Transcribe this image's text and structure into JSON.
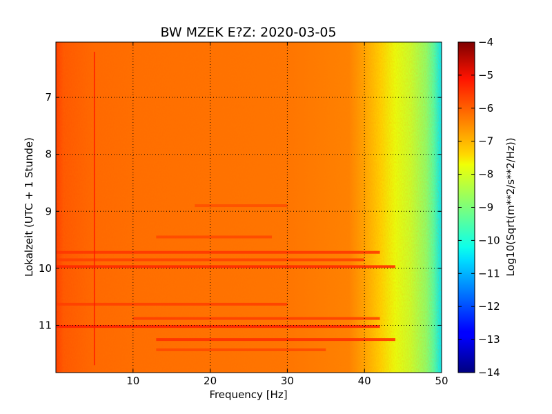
{
  "chart_data": {
    "type": "heatmap",
    "title": "BW MZEK E?Z: 2020-03-05",
    "xlabel": "Frequency [Hz]",
    "ylabel": "Lokalzeit (UTC + 1 Stunde)",
    "colorbar_label": "Log10(Sqrt(m**2/s**2/Hz))",
    "colormap": "jet",
    "xlim": [
      0,
      50
    ],
    "ylim": [
      6.03,
      11.83
    ],
    "y_inverted": true,
    "x_ticks": [
      10,
      20,
      30,
      40,
      50
    ],
    "x_tick_labels": [
      "10",
      "20",
      "30",
      "40",
      "50"
    ],
    "y_ticks": [
      7,
      8,
      9,
      10,
      11
    ],
    "y_tick_labels": [
      "7",
      "8",
      "9",
      "10",
      "11"
    ],
    "clim": [
      -14,
      -4
    ],
    "colorbar_ticks": [
      -4,
      -5,
      -6,
      -7,
      -8,
      -9,
      -10,
      -11,
      -12,
      -13,
      -14
    ],
    "colorbar_tick_labels": [
      "−4",
      "−5",
      "−6",
      "−7",
      "−8",
      "−9",
      "−10",
      "−11",
      "−12",
      "−13",
      "−14"
    ],
    "grid": true,
    "frequency_profile": {
      "frequency_hz": [
        0,
        1,
        5,
        10,
        20,
        30,
        38,
        40,
        42,
        44,
        46,
        48,
        49,
        50
      ],
      "log10_amplitude": [
        -5.6,
        -5.9,
        -6.1,
        -6.15,
        -6.2,
        -6.25,
        -6.4,
        -6.8,
        -7.3,
        -7.7,
        -8.1,
        -8.8,
        -9.5,
        -10.5
      ]
    },
    "horizontal_bands": [
      {
        "time": 9.72,
        "from_hz": 0,
        "to_hz": 42,
        "log10_amplitude": -5.5
      },
      {
        "time": 9.85,
        "from_hz": 0,
        "to_hz": 40,
        "log10_amplitude": -5.6
      },
      {
        "time": 9.97,
        "from_hz": 0,
        "to_hz": 44,
        "log10_amplitude": -5.3
      },
      {
        "time": 10.63,
        "from_hz": 0,
        "to_hz": 30,
        "log10_amplitude": -5.6
      },
      {
        "time": 10.88,
        "from_hz": 10,
        "to_hz": 42,
        "log10_amplitude": -5.6
      },
      {
        "time": 11.02,
        "from_hz": 0,
        "to_hz": 42,
        "log10_amplitude": -5.2
      },
      {
        "time": 11.25,
        "from_hz": 13,
        "to_hz": 44,
        "log10_amplitude": -5.4
      },
      {
        "time": 11.43,
        "from_hz": 13,
        "to_hz": 35,
        "log10_amplitude": -5.7
      },
      {
        "time": 9.45,
        "from_hz": 13,
        "to_hz": 28,
        "log10_amplitude": -5.7
      },
      {
        "time": 8.9,
        "from_hz": 18,
        "to_hz": 30,
        "log10_amplitude": -5.8
      }
    ],
    "vertical_lines": [
      {
        "frequency_hz": 5.0,
        "from_time": 6.2,
        "to_time": 11.7,
        "log10_amplitude": -5.2
      }
    ]
  }
}
